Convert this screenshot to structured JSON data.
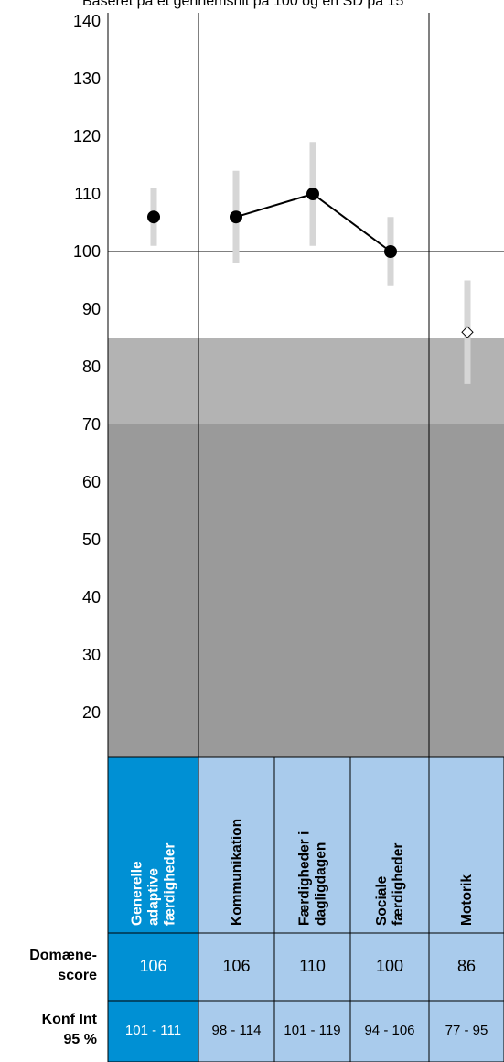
{
  "chart_data": {
    "type": "scatter",
    "title": "Baseret på et gennemsnit på 100 og en SD på 15",
    "xlabel": "",
    "ylabel": "",
    "ylim": [
      12,
      143
    ],
    "y_ticks": [
      140,
      130,
      120,
      110,
      100,
      90,
      80,
      70,
      60,
      50,
      40,
      30,
      20
    ],
    "reference_line": 100,
    "bands": [
      {
        "from": 70,
        "to": 85,
        "color": "#b3b3b3"
      },
      {
        "from": 12,
        "to": 70,
        "color": "#9a9a9a"
      }
    ],
    "categories": [
      "Generelle adaptive færdigheder",
      "Kommunikation",
      "Færdigheder i dagligdagen",
      "Sociale færdigheder",
      "Motorik"
    ],
    "category_lines": [
      [
        "Generelle",
        "adaptive",
        "færdigheder"
      ],
      [
        "Kommunikation"
      ],
      [
        "Færdigheder i",
        "dagligdagen"
      ],
      [
        "Sociale",
        "færdigheder"
      ],
      [
        "Motorik"
      ]
    ],
    "values": [
      106,
      106,
      110,
      100,
      86
    ],
    "ci_low": [
      101,
      98,
      101,
      94,
      77
    ],
    "ci_high": [
      111,
      114,
      119,
      106,
      95
    ],
    "marker": [
      "filled",
      "filled",
      "filled",
      "filled",
      "open-diamond"
    ],
    "connected_series": [
      1,
      2,
      3
    ],
    "grid": false
  },
  "table": {
    "score_label_lines": [
      "Domæne-",
      "score"
    ],
    "ci_label_lines": [
      "Konf Int",
      "95 %"
    ],
    "scores": [
      "106",
      "106",
      "110",
      "100",
      "86"
    ],
    "ci_texts": [
      "101 - 111",
      "98 - 114",
      "101 - 119",
      "94 - 106",
      "77 - 95"
    ]
  },
  "colors": {
    "highlight_cell": "#0090d4",
    "normal_cell": "#a9cbec",
    "ci_bar": "#d6d6d6",
    "point": "#000000"
  }
}
